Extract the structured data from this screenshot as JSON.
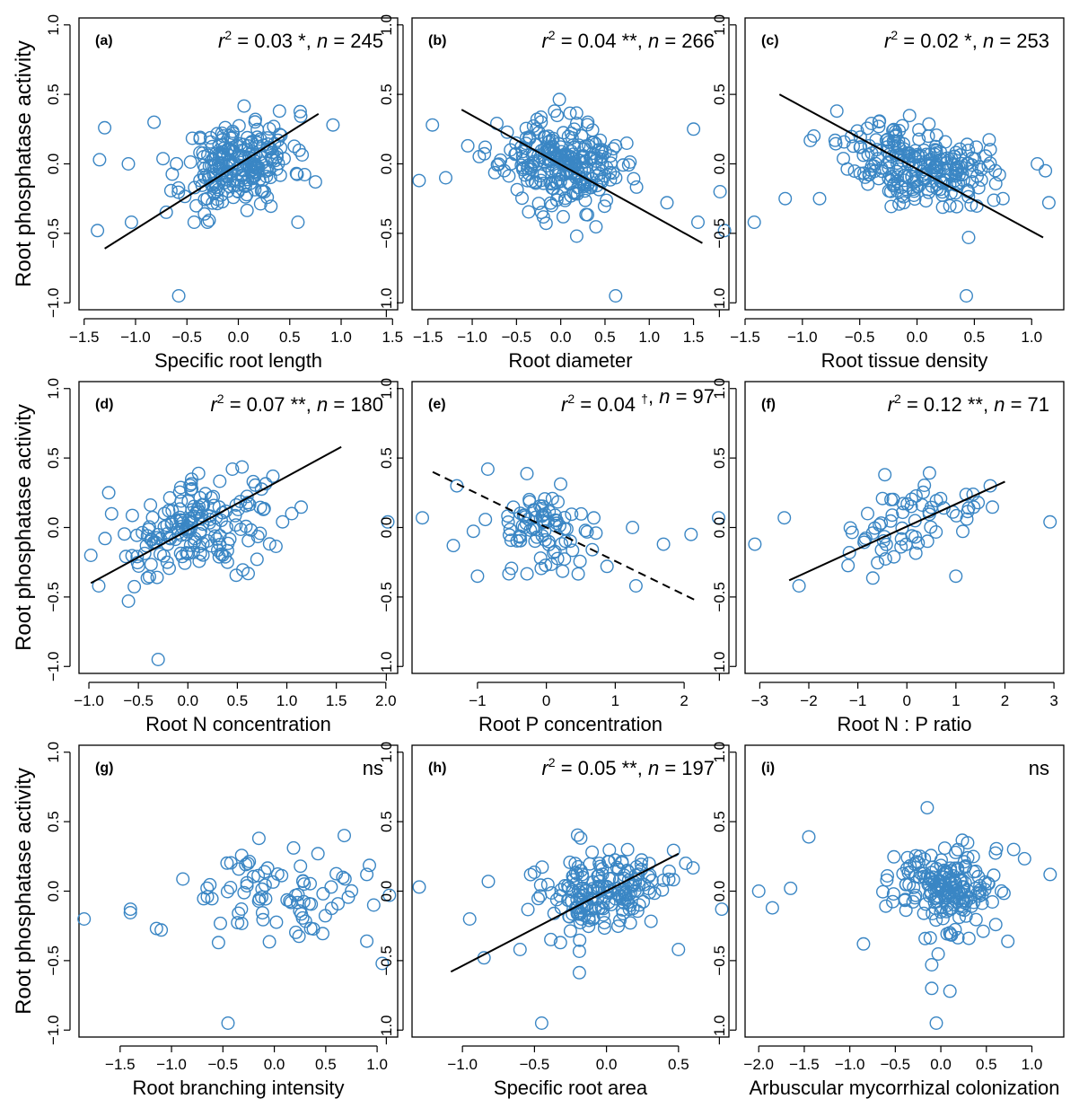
{
  "chart_data": [
    {
      "id": "a",
      "type": "scatter",
      "panel_label": "(a)",
      "stat": {
        "r2": "0.03",
        "sig": "*",
        "n": "245"
      },
      "xlabel": "Specific root length",
      "ylabel": "Root phosphatase activity",
      "xlim": [
        -1.55,
        1.55
      ],
      "ylim": [
        -1.05,
        1.05
      ],
      "xticks": [
        -1.5,
        -1.0,
        -0.5,
        0.0,
        0.5,
        1.0,
        1.5
      ],
      "xtick_labels": [
        "−1.5",
        "−1.0",
        "−0.5",
        "0.0",
        "0.5",
        "1.0",
        "1.5"
      ],
      "yticks": [
        -1.0,
        -0.5,
        0.0,
        0.5,
        1.0
      ],
      "ytick_labels": [
        "−1.0",
        "−0.5",
        "0.0",
        "0.5",
        "1.0"
      ],
      "fit": {
        "x": [
          -1.3,
          0.78
        ],
        "y": [
          -0.61,
          0.36
        ],
        "dashed": false
      },
      "outliers": [
        [
          -1.35,
          0.03
        ],
        [
          -1.3,
          0.26
        ],
        [
          -1.37,
          -0.48
        ],
        [
          -1.07,
          0.0
        ],
        [
          -0.82,
          0.3
        ],
        [
          -0.58,
          -0.95
        ],
        [
          -0.43,
          -0.42
        ],
        [
          -0.3,
          -0.42
        ],
        [
          0.92,
          0.28
        ],
        [
          0.58,
          -0.42
        ],
        [
          0.4,
          0.38
        ],
        [
          -1.04,
          -0.42
        ],
        [
          0.75,
          -0.13
        ]
      ],
      "cloud": {
        "seed": 11,
        "count": 232,
        "mx": 0.0,
        "sx": 0.26,
        "my": 0.0,
        "sy": 0.15,
        "slope": 0.13
      }
    },
    {
      "id": "b",
      "type": "scatter",
      "panel_label": "(b)",
      "stat": {
        "r2": "0.04",
        "sig": "**",
        "n": "266"
      },
      "xlabel": "Root diameter",
      "ylabel": "",
      "xlim": [
        -1.68,
        1.9
      ],
      "ylim": [
        -1.05,
        1.05
      ],
      "xticks": [
        -1.5,
        -1.0,
        -0.5,
        0.0,
        0.5,
        1.0,
        1.5
      ],
      "xtick_labels": [
        "−1.5",
        "−1.0",
        "−0.5",
        "0.0",
        "0.5",
        "1.0",
        "1.5"
      ],
      "yticks": [
        -1.0,
        -0.5,
        0.0,
        0.5,
        1.0
      ],
      "ytick_labels": [
        "−1.0",
        "−0.5",
        "0.0",
        "0.5",
        "1.0"
      ],
      "fit": {
        "x": [
          -1.12,
          1.6
        ],
        "y": [
          0.39,
          -0.57
        ],
        "dashed": false
      },
      "outliers": [
        [
          -1.45,
          0.28
        ],
        [
          -1.6,
          -0.12
        ],
        [
          -1.3,
          -0.1
        ],
        [
          1.5,
          0.25
        ],
        [
          1.8,
          -0.2
        ],
        [
          1.85,
          -0.48
        ],
        [
          1.55,
          -0.42
        ],
        [
          0.62,
          -0.95
        ],
        [
          0.18,
          -0.52
        ],
        [
          1.2,
          -0.28
        ],
        [
          -1.05,
          0.13
        ],
        [
          -0.07,
          0.38
        ]
      ],
      "cloud": {
        "seed": 23,
        "count": 254,
        "mx": 0.0,
        "sx": 0.34,
        "my": 0.0,
        "sy": 0.15,
        "slope": -0.1
      }
    },
    {
      "id": "c",
      "type": "scatter",
      "panel_label": "(c)",
      "stat": {
        "r2": "0.02",
        "sig": "*",
        "n": "253"
      },
      "xlabel": "Root tissue density",
      "ylabel": "",
      "xlim": [
        -1.5,
        1.28
      ],
      "ylim": [
        -1.05,
        1.05
      ],
      "xticks": [
        -1.5,
        -1.0,
        -0.5,
        0.0,
        0.5,
        1.0
      ],
      "xtick_labels": [
        "−1.5",
        "−1.0",
        "−0.5",
        "0.0",
        "0.5",
        "1.0"
      ],
      "yticks": [
        -1.0,
        -0.5,
        0.0,
        0.5,
        1.0
      ],
      "ytick_labels": [
        "−1.0",
        "−0.5",
        "0.0",
        "0.5",
        "1.0"
      ],
      "fit": {
        "x": [
          -1.2,
          1.1
        ],
        "y": [
          0.5,
          -0.53
        ],
        "dashed": false
      },
      "outliers": [
        [
          -1.42,
          -0.42
        ],
        [
          -1.15,
          -0.25
        ],
        [
          -0.9,
          0.2
        ],
        [
          -0.7,
          0.38
        ],
        [
          1.05,
          0.0
        ],
        [
          1.12,
          -0.05
        ],
        [
          1.15,
          -0.28
        ],
        [
          0.43,
          -0.95
        ],
        [
          0.45,
          -0.53
        ],
        [
          0.75,
          -0.25
        ],
        [
          -0.85,
          -0.25
        ]
      ],
      "cloud": {
        "seed": 37,
        "count": 242,
        "mx": 0.0,
        "sx": 0.3,
        "my": 0.0,
        "sy": 0.14,
        "slope": -0.12
      }
    },
    {
      "id": "d",
      "type": "scatter",
      "panel_label": "(d)",
      "stat": {
        "r2": "0.07",
        "sig": "**",
        "n": "180"
      },
      "xlabel": "Root N concentration",
      "ylabel": "Root phosphatase activity",
      "xlim": [
        -1.1,
        2.12
      ],
      "ylim": [
        -1.05,
        1.05
      ],
      "xticks": [
        -1.0,
        -0.5,
        0.0,
        0.5,
        1.0,
        1.5,
        2.0
      ],
      "xtick_labels": [
        "−1.0",
        "−0.5",
        "0.0",
        "0.5",
        "1.0",
        "1.5",
        "2.0"
      ],
      "yticks": [
        -1.0,
        -0.5,
        0.0,
        0.5,
        1.0
      ],
      "ytick_labels": [
        "−1.0",
        "−0.5",
        "0.0",
        "0.5",
        "1.0"
      ],
      "fit": {
        "x": [
          -0.98,
          1.55
        ],
        "y": [
          -0.4,
          0.58
        ],
        "dashed": false
      },
      "outliers": [
        [
          2.02,
          0.04
        ],
        [
          -0.3,
          -0.95
        ],
        [
          -0.6,
          -0.53
        ],
        [
          -0.9,
          -0.42
        ],
        [
          -0.98,
          -0.2
        ],
        [
          0.45,
          0.42
        ],
        [
          1.05,
          0.1
        ],
        [
          0.4,
          -0.25
        ],
        [
          -0.8,
          0.25
        ]
      ],
      "cloud": {
        "seed": 41,
        "count": 171,
        "mx": 0.1,
        "sx": 0.4,
        "my": 0.0,
        "sy": 0.16,
        "slope": 0.15
      }
    },
    {
      "id": "e",
      "type": "scatter",
      "panel_label": "(e)",
      "stat": {
        "r2": "0.04",
        "sig": "†",
        "n": "97"
      },
      "xlabel": "Root P concentration",
      "ylabel": "",
      "xlim": [
        -1.95,
        2.65
      ],
      "ylim": [
        -1.05,
        1.05
      ],
      "xticks": [
        -1,
        0,
        1,
        2
      ],
      "xtick_labels": [
        "−1",
        "0",
        "1",
        "2"
      ],
      "yticks": [
        -1.0,
        -0.5,
        0.0,
        0.5,
        1.0
      ],
      "ytick_labels": [
        "−1.0",
        "−0.5",
        "0.0",
        "0.5",
        "1.0"
      ],
      "fit": {
        "x": [
          -1.65,
          2.15
        ],
        "y": [
          0.4,
          -0.52
        ],
        "dashed": true
      },
      "outliers": [
        [
          -1.8,
          0.07
        ],
        [
          -1.35,
          -0.13
        ],
        [
          -1.3,
          0.3
        ],
        [
          -1.0,
          -0.35
        ],
        [
          -0.85,
          0.42
        ],
        [
          2.5,
          0.07
        ],
        [
          2.1,
          -0.05
        ],
        [
          1.3,
          -0.42
        ],
        [
          1.7,
          -0.12
        ],
        [
          0.88,
          -0.28
        ],
        [
          1.25,
          0.0
        ]
      ],
      "cloud": {
        "seed": 53,
        "count": 86,
        "mx": -0.05,
        "sx": 0.38,
        "my": 0.0,
        "sy": 0.15,
        "slope": -0.05
      }
    },
    {
      "id": "f",
      "type": "scatter",
      "panel_label": "(f)",
      "stat": {
        "r2": "0.12",
        "sig": "**",
        "n": "71"
      },
      "xlabel": "Root N : P ratio",
      "ylabel": "",
      "xlim": [
        -3.3,
        3.2
      ],
      "ylim": [
        -1.05,
        1.05
      ],
      "xticks": [
        -3,
        -2,
        -1,
        0,
        1,
        2,
        3
      ],
      "xtick_labels": [
        "−3",
        "−2",
        "−1",
        "0",
        "1",
        "2",
        "3"
      ],
      "yticks": [
        -1.0,
        -0.5,
        0.0,
        0.5,
        1.0
      ],
      "ytick_labels": [
        "−1.0",
        "−0.5",
        "0.0",
        "0.5",
        "1.0"
      ],
      "fit": {
        "x": [
          -2.4,
          2.0
        ],
        "y": [
          -0.38,
          0.33
        ],
        "dashed": false
      },
      "outliers": [
        [
          -3.1,
          -0.12
        ],
        [
          -2.5,
          0.07
        ],
        [
          -2.2,
          -0.42
        ],
        [
          2.92,
          0.04
        ],
        [
          1.7,
          0.3
        ],
        [
          1.0,
          -0.35
        ],
        [
          -0.8,
          0.1
        ],
        [
          -0.45,
          0.38
        ]
      ],
      "cloud": {
        "seed": 67,
        "count": 63,
        "mx": 0.1,
        "sx": 0.75,
        "my": 0.0,
        "sy": 0.14,
        "slope": 0.1
      }
    },
    {
      "id": "g",
      "type": "scatter",
      "panel_label": "(g)",
      "stat": {
        "ns": "ns"
      },
      "xlabel": "Root branching intensity",
      "ylabel": "Root phosphatase activity",
      "xlim": [
        -1.9,
        1.2
      ],
      "ylim": [
        -1.05,
        1.05
      ],
      "xticks": [
        -1.5,
        -1.0,
        -0.5,
        0.0,
        0.5,
        1.0
      ],
      "xtick_labels": [
        "−1.5",
        "−1.0",
        "−0.5",
        "0.0",
        "0.5",
        "1.0"
      ],
      "yticks": [
        -1.0,
        -0.5,
        0.0,
        0.5,
        1.0
      ],
      "ytick_labels": [
        "−1.0",
        "−0.5",
        "0.0",
        "0.5",
        "1.0"
      ],
      "fit": null,
      "outliers": [
        [
          -1.85,
          -0.2
        ],
        [
          -1.4,
          -0.13
        ],
        [
          -1.1,
          -0.28
        ],
        [
          -0.45,
          -0.95
        ],
        [
          1.12,
          -0.03
        ],
        [
          1.05,
          -0.52
        ],
        [
          0.9,
          -0.36
        ],
        [
          0.9,
          0.12
        ],
        [
          0.68,
          0.4
        ],
        [
          -0.15,
          0.38
        ]
      ],
      "cloud": {
        "seed": 79,
        "count": 80,
        "mx": 0.0,
        "sx": 0.45,
        "my": 0.0,
        "sy": 0.15,
        "slope": 0.0
      }
    },
    {
      "id": "h",
      "type": "scatter",
      "panel_label": "(h)",
      "stat": {
        "r2": "0.05",
        "sig": "**",
        "n": "197"
      },
      "xlabel": "Specific root area",
      "ylabel": "",
      "xlim": [
        -1.35,
        0.85
      ],
      "ylim": [
        -1.05,
        1.05
      ],
      "xticks": [
        -1.0,
        -0.5,
        0.0,
        0.5
      ],
      "xtick_labels": [
        "−1.0",
        "−0.5",
        "0.0",
        "0.5"
      ],
      "yticks": [
        -1.0,
        -0.5,
        0.0,
        0.5,
        1.0
      ],
      "ytick_labels": [
        "−1.0",
        "−0.5",
        "0.0",
        "0.5",
        "1.0"
      ],
      "fit": {
        "x": [
          -1.08,
          0.5
        ],
        "y": [
          -0.58,
          0.27
        ],
        "dashed": false
      },
      "outliers": [
        [
          -1.3,
          0.03
        ],
        [
          -0.85,
          -0.48
        ],
        [
          -0.95,
          -0.2
        ],
        [
          -0.45,
          -0.95
        ],
        [
          0.8,
          -0.13
        ],
        [
          0.5,
          -0.42
        ],
        [
          -0.6,
          -0.42
        ],
        [
          0.55,
          0.2
        ],
        [
          -0.82,
          0.07
        ]
      ],
      "cloud": {
        "seed": 89,
        "count": 188,
        "mx": 0.0,
        "sx": 0.22,
        "my": 0.0,
        "sy": 0.15,
        "slope": 0.25
      }
    },
    {
      "id": "i",
      "type": "scatter",
      "panel_label": "(i)",
      "stat": {
        "ns": "ns"
      },
      "xlabel": "Arbuscular mycorrhizal colonization",
      "ylabel": "",
      "xlim": [
        -2.15,
        1.35
      ],
      "ylim": [
        -1.05,
        1.05
      ],
      "xticks": [
        -2.0,
        -1.5,
        -1.0,
        -0.5,
        0.0,
        0.5,
        1.0
      ],
      "xtick_labels": [
        "−2.0",
        "−1.5",
        "−1.0",
        "−0.5",
        "0.0",
        "0.5",
        "1.0"
      ],
      "yticks": [
        -1.0,
        -0.5,
        0.0,
        0.5,
        1.0
      ],
      "ytick_labels": [
        "−1.0",
        "−0.5",
        "0.0",
        "0.5",
        "1.0"
      ],
      "fit": null,
      "outliers": [
        [
          -2.0,
          0.0
        ],
        [
          -1.85,
          -0.12
        ],
        [
          -1.65,
          0.02
        ],
        [
          -1.45,
          0.39
        ],
        [
          -0.05,
          -0.95
        ],
        [
          0.1,
          -0.72
        ],
        [
          -0.1,
          -0.7
        ],
        [
          -0.1,
          -0.53
        ],
        [
          1.2,
          0.12
        ],
        [
          0.8,
          0.3
        ],
        [
          -0.15,
          0.6
        ],
        [
          -0.85,
          -0.38
        ]
      ],
      "cloud": {
        "seed": 97,
        "count": 190,
        "mx": 0.0,
        "sx": 0.3,
        "my": 0.02,
        "sy": 0.16,
        "slope": 0.0
      }
    }
  ]
}
